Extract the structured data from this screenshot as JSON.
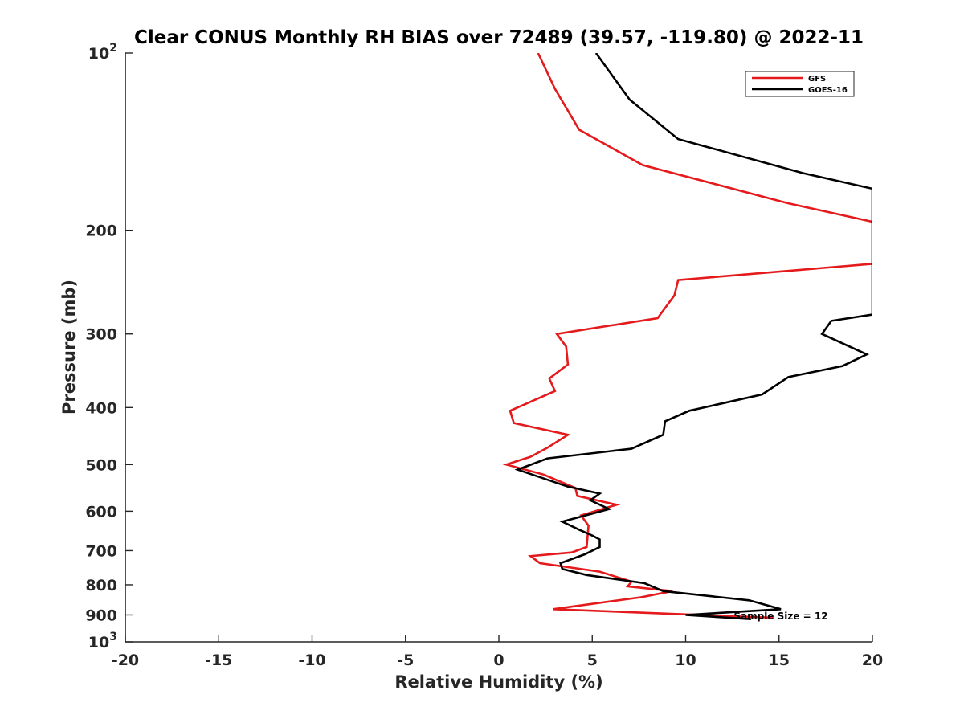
{
  "chart_data": {
    "type": "line",
    "title": "Clear CONUS Monthly RH BIAS over 72489 (39.57, -119.80) @ 2022-11",
    "xlabel": "Relative Humidity (%)",
    "ylabel": "Pressure (mb)",
    "xlim": [
      -20,
      20
    ],
    "ylim": [
      100,
      1000
    ],
    "yscale": "log",
    "y_reversed": true,
    "grid": false,
    "x_ticks": [
      {
        "value": -20,
        "label": "-20"
      },
      {
        "value": -15,
        "label": "-15"
      },
      {
        "value": -10,
        "label": "-10"
      },
      {
        "value": -5,
        "label": "-5"
      },
      {
        "value": 0,
        "label": "0"
      },
      {
        "value": 5,
        "label": "5"
      },
      {
        "value": 10,
        "label": "10"
      },
      {
        "value": 15,
        "label": "15"
      },
      {
        "value": 20,
        "label": "20"
      }
    ],
    "y_ticks": [
      {
        "value": 100,
        "base": "10",
        "exp": "2"
      },
      {
        "value": 200,
        "base": "200",
        "exp": ""
      },
      {
        "value": 300,
        "base": "300",
        "exp": ""
      },
      {
        "value": 400,
        "base": "400",
        "exp": ""
      },
      {
        "value": 500,
        "base": "500",
        "exp": ""
      },
      {
        "value": 600,
        "base": "600",
        "exp": ""
      },
      {
        "value": 700,
        "base": "700",
        "exp": ""
      },
      {
        "value": 800,
        "base": "800",
        "exp": ""
      },
      {
        "value": 900,
        "base": "900",
        "exp": ""
      },
      {
        "value": 1000,
        "base": "10",
        "exp": "3"
      }
    ],
    "legend_position": "top-right",
    "annotation": "Sample Size = 12",
    "series": [
      {
        "name": "GFS",
        "color": "#e41a1c",
        "points": [
          [
            2.1,
            100
          ],
          [
            3.0,
            115
          ],
          [
            4.3,
            135
          ],
          [
            7.7,
            155
          ],
          [
            15.5,
            180
          ],
          [
            20.5,
            195
          ],
          [
            20.0,
            228
          ],
          [
            9.6,
            243
          ],
          [
            9.4,
            258
          ],
          [
            8.5,
            282
          ],
          [
            3.1,
            300
          ],
          [
            3.6,
            315
          ],
          [
            3.7,
            338
          ],
          [
            2.7,
            357
          ],
          [
            3.0,
            375
          ],
          [
            0.6,
            405
          ],
          [
            0.8,
            425
          ],
          [
            3.7,
            445
          ],
          [
            2.6,
            468
          ],
          [
            1.7,
            485
          ],
          [
            0.4,
            500
          ],
          [
            2.4,
            520
          ],
          [
            4.1,
            548
          ],
          [
            4.2,
            565
          ],
          [
            6.3,
            585
          ],
          [
            4.4,
            610
          ],
          [
            4.8,
            635
          ],
          [
            4.7,
            690
          ],
          [
            3.9,
            705
          ],
          [
            1.7,
            715
          ],
          [
            2.2,
            735
          ],
          [
            5.4,
            760
          ],
          [
            7.1,
            790
          ],
          [
            6.9,
            805
          ],
          [
            9.3,
            820
          ],
          [
            7.6,
            840
          ],
          [
            2.9,
            880
          ],
          [
            14.7,
            910
          ]
        ]
      },
      {
        "name": "GOES-16",
        "color": "#000000",
        "points": [
          [
            5.2,
            100
          ],
          [
            7.0,
            120
          ],
          [
            9.6,
            140
          ],
          [
            16.3,
            160
          ],
          [
            20.0,
            170
          ],
          [
            20.0,
            278
          ],
          [
            17.8,
            285
          ],
          [
            17.3,
            300
          ],
          [
            19.7,
            325
          ],
          [
            18.4,
            340
          ],
          [
            15.5,
            355
          ],
          [
            14.1,
            380
          ],
          [
            10.2,
            405
          ],
          [
            8.9,
            422
          ],
          [
            8.8,
            445
          ],
          [
            7.1,
            470
          ],
          [
            2.6,
            488
          ],
          [
            1.0,
            510
          ],
          [
            3.7,
            545
          ],
          [
            5.4,
            560
          ],
          [
            4.9,
            575
          ],
          [
            5.9,
            595
          ],
          [
            3.4,
            625
          ],
          [
            4.3,
            645
          ],
          [
            5.0,
            660
          ],
          [
            5.4,
            670
          ],
          [
            5.4,
            690
          ],
          [
            4.6,
            710
          ],
          [
            3.3,
            735
          ],
          [
            3.4,
            752
          ],
          [
            4.7,
            770
          ],
          [
            7.8,
            795
          ],
          [
            8.8,
            820
          ],
          [
            13.4,
            850
          ],
          [
            15.1,
            880
          ],
          [
            10.0,
            900
          ],
          [
            13.5,
            915
          ]
        ]
      }
    ]
  }
}
